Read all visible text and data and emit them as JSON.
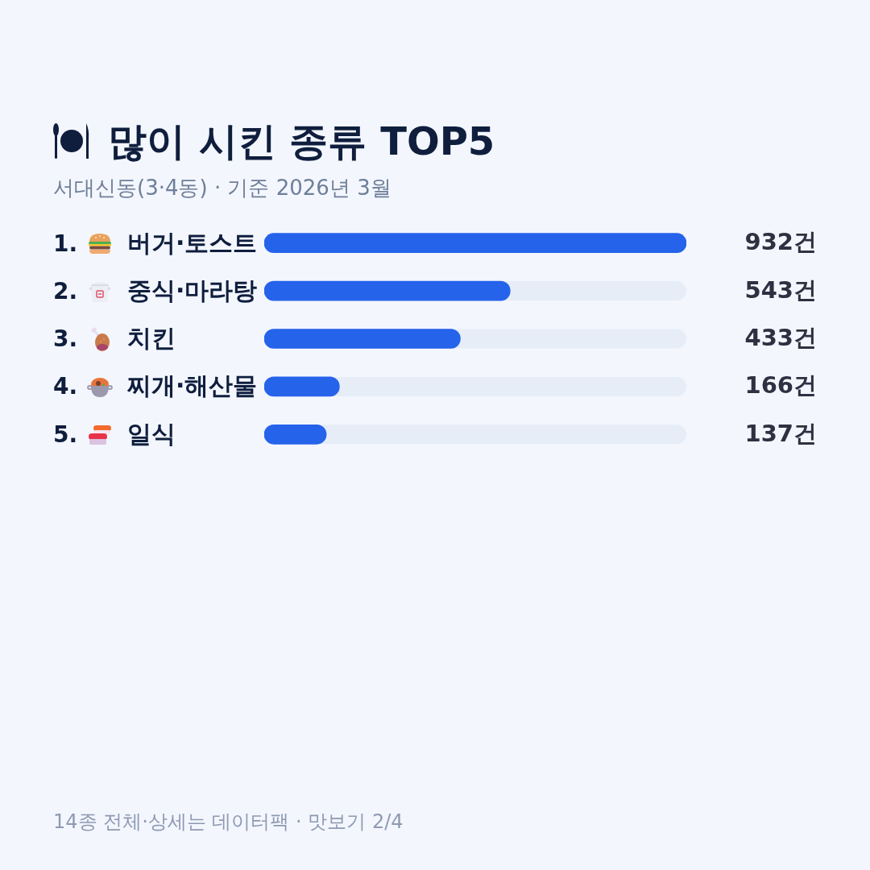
{
  "chart_data": {
    "type": "bar",
    "orientation": "horizontal",
    "title": "많이 시킨 종류 TOP5",
    "subtitle": "서대신동(3·4동) · 기준 2026년 3월",
    "categories": [
      "1. 버거·토스트",
      "2. 중식·마라탕",
      "3. 치킨",
      "4. 찌개·해산물",
      "5. 일식"
    ],
    "values": [
      932,
      543,
      433,
      166,
      137
    ],
    "color": "#2563eb",
    "value_labels": [
      "932건",
      "543건",
      "433건",
      "166건",
      "137건"
    ],
    "annotations": [
      "14종 전체·상세는 데이터팩 · 맛보기 2/4"
    ]
  }
}
